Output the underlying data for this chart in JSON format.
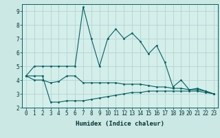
{
  "xlabel": "Humidex (Indice chaleur)",
  "background_color": "#cbe8e4",
  "plot_bg_color": "#d4eeea",
  "grid_color": "#b0cece",
  "line_color": "#006060",
  "x_values": [
    0,
    1,
    2,
    3,
    4,
    5,
    6,
    7,
    8,
    9,
    10,
    11,
    12,
    13,
    14,
    15,
    16,
    17,
    18,
    19,
    20,
    21,
    22,
    23
  ],
  "series1": [
    4.3,
    5.0,
    5.0,
    5.0,
    5.0,
    5.0,
    5.0,
    9.3,
    7.0,
    5.0,
    7.0,
    7.7,
    7.0,
    7.4,
    6.8,
    5.9,
    6.5,
    5.3,
    3.5,
    4.0,
    3.3,
    3.4,
    3.2,
    3.0
  ],
  "series2": [
    4.3,
    4.0,
    4.0,
    3.8,
    3.9,
    4.3,
    4.3,
    3.8,
    3.8,
    3.8,
    3.8,
    3.8,
    3.7,
    3.7,
    3.7,
    3.6,
    3.5,
    3.5,
    3.4,
    3.4,
    3.3,
    3.3,
    3.2,
    3.0
  ],
  "series3": [
    4.3,
    4.3,
    4.3,
    2.4,
    2.4,
    2.5,
    2.5,
    2.5,
    2.6,
    2.7,
    2.8,
    2.9,
    3.0,
    3.1,
    3.1,
    3.2,
    3.2,
    3.2,
    3.2,
    3.2,
    3.2,
    3.2,
    3.1,
    3.0
  ],
  "ylim": [
    2.0,
    9.5
  ],
  "xlim": [
    -0.5,
    23.5
  ],
  "yticks": [
    2,
    3,
    4,
    5,
    6,
    7,
    8,
    9
  ],
  "xticks": [
    0,
    1,
    2,
    3,
    4,
    5,
    6,
    7,
    8,
    9,
    10,
    11,
    12,
    13,
    14,
    15,
    16,
    17,
    18,
    19,
    20,
    21,
    22,
    23
  ],
  "tick_fontsize": 5.5,
  "xlabel_fontsize": 6.5
}
